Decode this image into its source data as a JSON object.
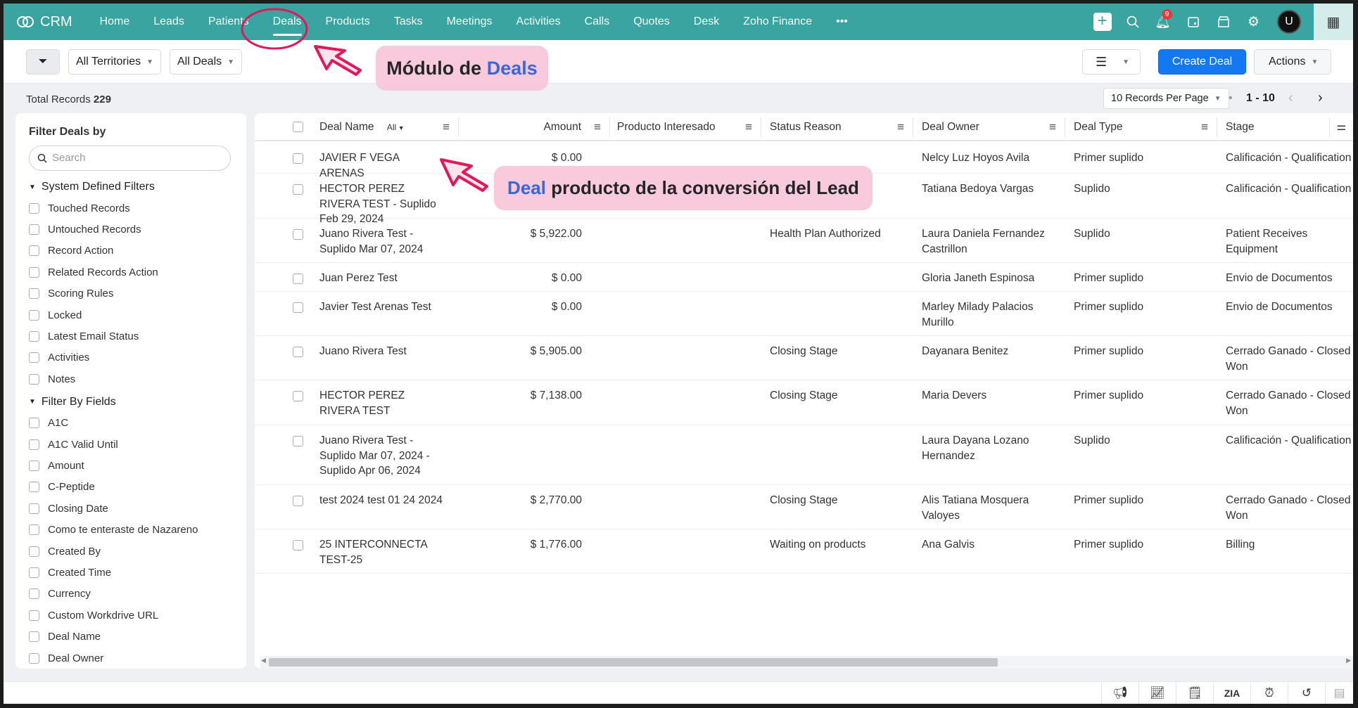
{
  "nav": {
    "brand": "CRM",
    "items": [
      "Home",
      "Leads",
      "Patients",
      "Deals",
      "Products",
      "Tasks",
      "Meetings",
      "Activities",
      "Calls",
      "Quotes",
      "Desk",
      "Zoho Finance"
    ],
    "active": "Deals",
    "more": "•••",
    "notification_count": "9"
  },
  "toolbar": {
    "territories": "All Territories",
    "view": "All Deals",
    "create": "Create Deal",
    "actions": "Actions"
  },
  "records": {
    "label": "Total Records",
    "count": "229",
    "per_page": "10 Records Per Page",
    "range": "1 - 10"
  },
  "sidebar": {
    "title": "Filter Deals by",
    "search_placeholder": "Search",
    "system_title": "System Defined Filters",
    "system_filters": [
      "Touched Records",
      "Untouched Records",
      "Record Action",
      "Related Records Action",
      "Scoring Rules",
      "Locked",
      "Latest Email Status",
      "Activities",
      "Notes"
    ],
    "fields_title": "Filter By Fields",
    "field_filters": [
      "A1C",
      "A1C Valid Until",
      "Amount",
      "C-Peptide",
      "Closing Date",
      "Como te enteraste de Nazareno",
      "Created By",
      "Created Time",
      "Currency",
      "Custom Workdrive URL",
      "Deal Name",
      "Deal Owner"
    ]
  },
  "table": {
    "columns": {
      "name": "Deal Name",
      "name_filter": "All",
      "amount": "Amount",
      "producto": "Producto Interesado",
      "status": "Status Reason",
      "owner": "Deal Owner",
      "type": "Deal Type",
      "stage": "Stage"
    },
    "rows": [
      {
        "name": "JAVIER F VEGA ARENAS",
        "amount": "$ 0.00",
        "producto": "",
        "status": "",
        "owner": "Nelcy Luz Hoyos Avila",
        "type": "Primer suplido",
        "stage": "Calificación - Qualification"
      },
      {
        "name": "HECTOR PEREZ RIVERA TEST - Suplido Feb 29, 2024",
        "amount": "",
        "producto": "",
        "status": "",
        "owner": "Tatiana Bedoya Vargas",
        "type": "Suplido",
        "stage": "Calificación - Qualification"
      },
      {
        "name": "Juano Rivera Test - Suplido Mar 07, 2024",
        "amount": "$ 5,922.00",
        "producto": "",
        "status": "Health Plan Authorized",
        "owner": "Laura Daniela Fernandez Castrillon",
        "type": "Suplido",
        "stage": "Patient Receives Equipment"
      },
      {
        "name": "Juan Perez Test",
        "amount": "$ 0.00",
        "producto": "",
        "status": "",
        "owner": "Gloria Janeth Espinosa",
        "type": "Primer suplido",
        "stage": "Envio de Documentos"
      },
      {
        "name": "Javier Test Arenas Test",
        "amount": "$ 0.00",
        "producto": "",
        "status": "",
        "owner": "Marley Milady Palacios Murillo",
        "type": "Primer suplido",
        "stage": "Envio de Documentos"
      },
      {
        "name": "Juano Rivera Test",
        "amount": "$ 5,905.00",
        "producto": "",
        "status": "Closing Stage",
        "owner": "Dayanara Benitez",
        "type": "Primer suplido",
        "stage": "Cerrado Ganado - Closed Won"
      },
      {
        "name": "HECTOR PEREZ RIVERA TEST",
        "amount": "$ 7,138.00",
        "producto": "",
        "status": "Closing Stage",
        "owner": "Maria Devers",
        "type": "Primer suplido",
        "stage": "Cerrado Ganado - Closed Won"
      },
      {
        "name": "Juano Rivera Test - Suplido Mar 07, 2024 - Suplido Apr 06, 2024",
        "amount": "",
        "producto": "",
        "status": "",
        "owner": "Laura Dayana Lozano Hernandez",
        "type": "Suplido",
        "stage": "Calificación - Qualification"
      },
      {
        "name": "test 2024 test 01 24 2024",
        "amount": "$ 2,770.00",
        "producto": "",
        "status": "Closing Stage",
        "owner": "Alis Tatiana Mosquera Valoyes",
        "type": "Primer suplido",
        "stage": "Cerrado Ganado - Closed Won"
      },
      {
        "name": "25 INTERCONNECTA TEST-25",
        "amount": "$ 1,776.00",
        "producto": "",
        "status": "Waiting on products",
        "owner": "Ana Galvis",
        "type": "Primer suplido",
        "stage": "Billing"
      }
    ]
  },
  "annotations": {
    "modulo_prefix": "Módulo de ",
    "modulo_highlight": "Deals",
    "deal_highlight": "Deal",
    "deal_rest": " producto de la conversión del Lead"
  },
  "colors": {
    "nav": "#3aa5a0",
    "primary": "#1479f0",
    "callout": "#f8c8da",
    "annotation_red": "#e0195a"
  }
}
